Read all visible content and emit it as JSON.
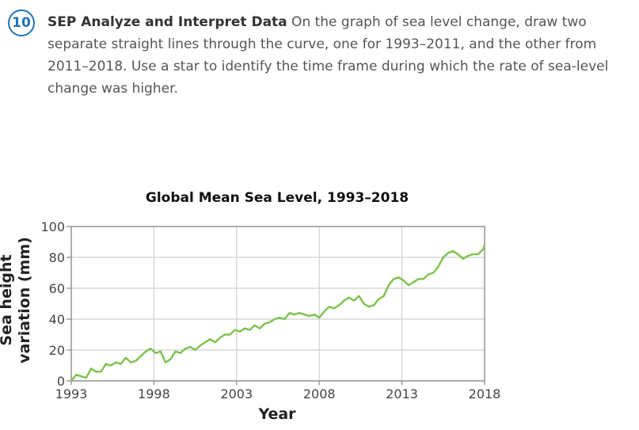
{
  "question": {
    "number": "10",
    "heading": "SEP Analyze and Interpret Data",
    "body": " On the graph of sea level change, draw two separate straight lines through the curve, one for 1993–2011, and the other from 2011–2018. Use a star to identify the time frame during which the rate of sea-level change was higher."
  },
  "chart_data": {
    "type": "line",
    "title": "Global Mean Sea Level, 1993–2018",
    "xlabel": "Year",
    "ylabel_line1": "Sea height",
    "ylabel_line2": "variation (mm)",
    "xlim": [
      1993,
      2018
    ],
    "ylim": [
      0,
      100
    ],
    "x_ticks": [
      1993,
      1998,
      2003,
      2008,
      2013,
      2018
    ],
    "y_ticks": [
      0,
      20,
      40,
      60,
      80,
      100
    ],
    "grid": true,
    "line_color": "#7dc24b",
    "series": [
      {
        "x": [
          1993.0,
          1993.3,
          1993.6,
          1993.9,
          1994.2,
          1994.5,
          1994.8,
          1995.1,
          1995.4,
          1995.7,
          1996.0,
          1996.3,
          1996.6,
          1996.9,
          1997.2,
          1997.5,
          1997.8,
          1998.1,
          1998.4,
          1998.7,
          1999.0,
          1999.3,
          1999.6,
          1999.9,
          2000.2,
          2000.5,
          2000.8,
          2001.1,
          2001.4,
          2001.7,
          2002.0,
          2002.3,
          2002.6,
          2002.9,
          2003.2,
          2003.5,
          2003.8,
          2004.1,
          2004.4,
          2004.7,
          2005.0,
          2005.3,
          2005.6,
          2005.9,
          2006.2,
          2006.5,
          2006.8,
          2007.1,
          2007.4,
          2007.7,
          2008.0,
          2008.3,
          2008.6,
          2008.9,
          2009.2,
          2009.5,
          2009.8,
          2010.1,
          2010.4,
          2010.7,
          2011.0,
          2011.3,
          2011.6,
          2011.9,
          2012.2,
          2012.5,
          2012.8,
          2013.1,
          2013.4,
          2013.7,
          2014.0,
          2014.3,
          2014.6,
          2014.9,
          2015.2,
          2015.5,
          2015.8,
          2016.1,
          2016.4,
          2016.7,
          2017.0,
          2017.3,
          2017.6,
          2017.9,
          2018.0
        ],
        "y": [
          0,
          4,
          3,
          2,
          8,
          6,
          6,
          11,
          10,
          12,
          11,
          15,
          12,
          13,
          16,
          19,
          21,
          18,
          19,
          12,
          14,
          19,
          18,
          21,
          22,
          20,
          23,
          25,
          27,
          25,
          28,
          30,
          30,
          33,
          32,
          34,
          33,
          36,
          34,
          37,
          38,
          40,
          41,
          40,
          44,
          43,
          44,
          43,
          42,
          43,
          41,
          45,
          48,
          47,
          49,
          52,
          54,
          52,
          55,
          50,
          48,
          49,
          53,
          55,
          62,
          66,
          67,
          65,
          62,
          64,
          66,
          66,
          69,
          70,
          74,
          80,
          83,
          84,
          82,
          79,
          81,
          82,
          82,
          85,
          88
        ]
      }
    ]
  }
}
